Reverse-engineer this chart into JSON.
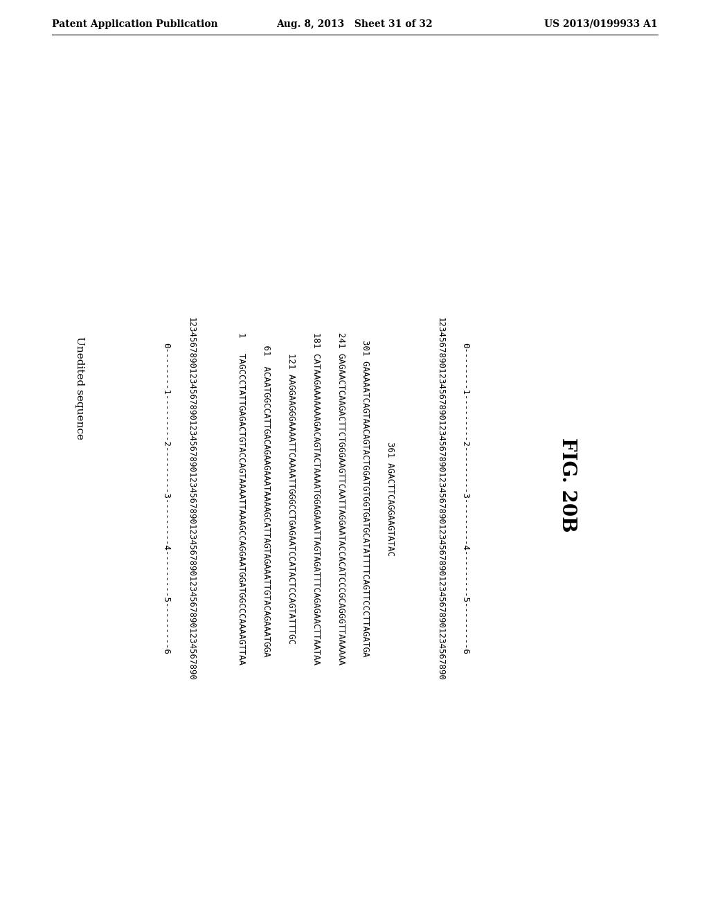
{
  "header_left": "Patent Application Publication",
  "header_center": "Aug. 8, 2013   Sheet 31 of 32",
  "header_right": "US 2013/0199933 A1",
  "section_label": "Unedited sequence",
  "content_lines": [
    "0--------1---------2---------3---------4---------5---------6",
    "1234567890123456789012345678901234567890123456789012345678901234567890",
    "",
    "1   TAGCCCTATTGAGACTGTACCAGTAAAATTAAAGCCAGGAATGGATGGCCCAAAAGTTAA",
    " 61  ACAATGGCCATTGACAGAAGAAATAAAAGCATTAGTAGAAATTGTACAGAAATGGA",
    "121 AAGGAAGGGAAAATTCAAAATTGGGCCTGAGAATCCATACTCCAGTATTTGC",
    "181 CATAAGAAAAAAAGACAGTACTAAAATGGAGAAATTAGTAGATTTCAGAGAACTTAATAA",
    "241 GAGAACTCAAGACTTCTGGGAAGTTCAATTAGGAATACCACATCCCGCAGGGTTAAAAAA",
    "301 GAAAAATCAGTAACAGTACTGGATGTGGTGATGCATATTTTCAGTTCCCTTAGATGA",
    "361 AGACTTCAGGAAGTATAC",
    "",
    "1234567890123456789012345678901234567890123456789012345678901234567890",
    "0--------1---------2---------3---------4---------5---------6"
  ],
  "fig_label": "FIG. 20B",
  "background_color": "#ffffff",
  "text_color": "#000000",
  "header_fontsize": 10,
  "mono_fontsize": 9,
  "label_fontsize": 11,
  "fig_label_fontsize": 20
}
